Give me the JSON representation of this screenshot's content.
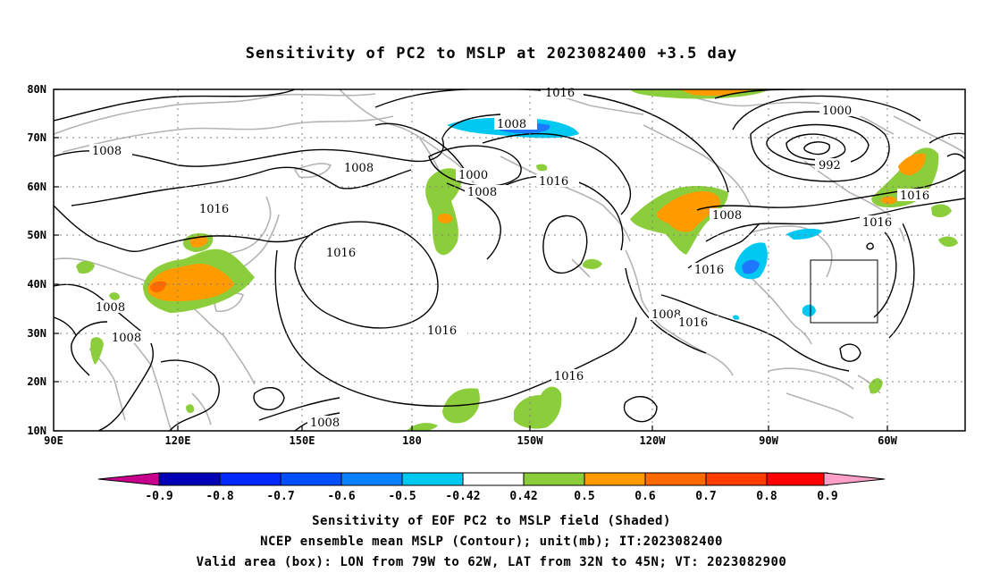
{
  "title": "Sensitivity of PC2 to MSLP at 2023082400 +3.5 day",
  "map": {
    "lon_range": [
      "90E",
      "310E"
    ],
    "lat_range": [
      10,
      80
    ],
    "lat_ticks": [
      "10N",
      "20N",
      "30N",
      "40N",
      "50N",
      "60N",
      "70N",
      "80N"
    ],
    "lon_ticks": [
      "90E",
      "120E",
      "150E",
      "180",
      "150W",
      "120W",
      "90W",
      "60W"
    ],
    "valid_box": {
      "lon_from": "79W",
      "lon_to": "62W",
      "lat_from": "32N",
      "lat_to": "45N"
    },
    "contour_labels": [
      "1016",
      "1008",
      "1008",
      "1016",
      "1008",
      "1000",
      "1008",
      "1016",
      "1000",
      "992",
      "1016",
      "1008",
      "1016",
      "1016",
      "1016",
      "1016",
      "1008",
      "1008",
      "1016",
      "1008",
      "1016",
      "1008"
    ],
    "colors": {
      "coast": "#b4b4b4",
      "contour": "#000000",
      "grid": "#808080",
      "green": "#8ccd3c",
      "orange": "#ff9a00",
      "dark_orange": "#ff6a00",
      "cyan": "#00c8f0",
      "blue": "#1e78ff"
    }
  },
  "colorbar": {
    "labels": [
      "-0.9",
      "-0.8",
      "-0.7",
      "-0.6",
      "-0.5",
      "-0.42",
      "0.42",
      "0.5",
      "0.6",
      "0.7",
      "0.8",
      "0.9"
    ],
    "colors": [
      "#0000b4",
      "#0028ff",
      "#0050ff",
      "#0a82ff",
      "#00c8f0",
      "#ffffff",
      "#8ccd3c",
      "#ff9a00",
      "#ff6a00",
      "#ff3c00",
      "#ff0000"
    ],
    "low_end_color": "#c8008c",
    "high_end_color": "#ffa0c8"
  },
  "captions": {
    "line1": "Sensitivity of EOF PC2 to MSLP field (Shaded)",
    "line2": "NCEP ensemble mean MSLP (Contour); unit(mb); IT:2023082400",
    "line3": "Valid area (box): LON from 79W to 62W, LAT from 32N to 45N; VT: 2023082900"
  }
}
